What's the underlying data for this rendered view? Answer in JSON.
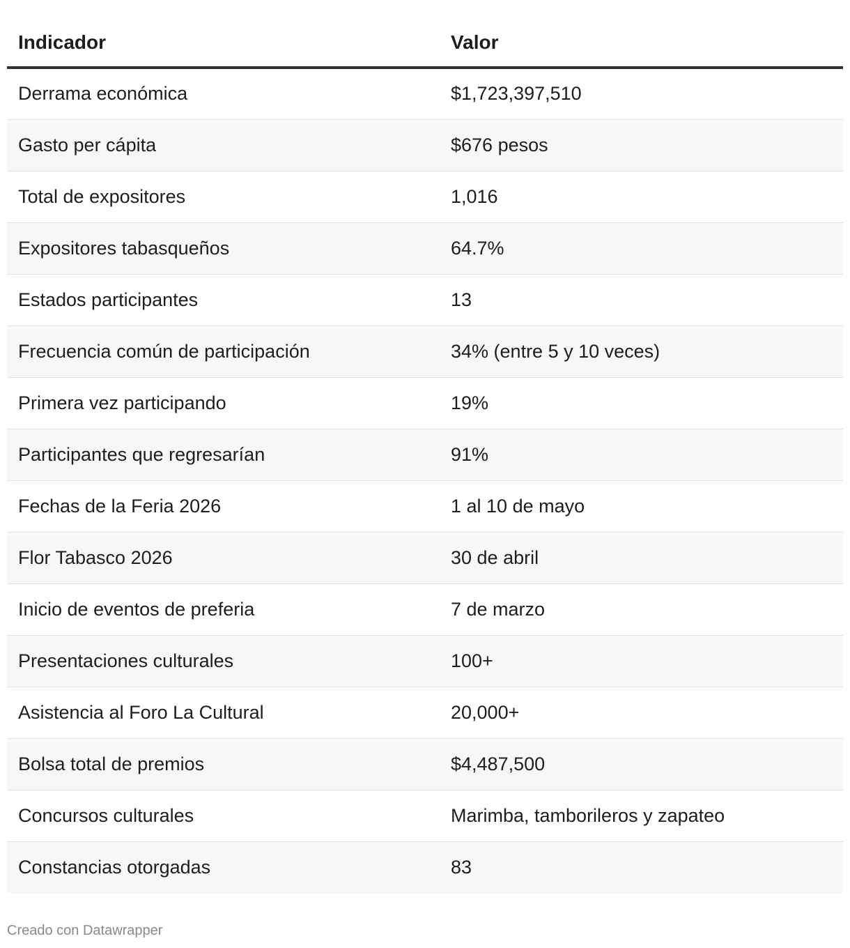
{
  "chart_data": {
    "type": "table",
    "columns": [
      "Indicador",
      "Valor"
    ],
    "rows": [
      [
        "Derrama económica",
        "$1,723,397,510"
      ],
      [
        "Gasto per cápita",
        "$676 pesos"
      ],
      [
        "Total de expositores",
        "1,016"
      ],
      [
        "Expositores tabasqueños",
        "64.7%"
      ],
      [
        "Estados participantes",
        "13"
      ],
      [
        "Frecuencia común de participación",
        "34% (entre 5 y 10 veces)"
      ],
      [
        "Primera vez participando",
        "19%"
      ],
      [
        "Participantes que regresarían",
        "91%"
      ],
      [
        "Fechas de la Feria 2026",
        "1 al 10 de mayo"
      ],
      [
        "Flor Tabasco 2026",
        "30 de abril"
      ],
      [
        "Inicio de eventos de preferia",
        "7 de marzo"
      ],
      [
        "Presentaciones culturales",
        "100+"
      ],
      [
        "Asistencia al Foro La Cultural",
        "20,000+"
      ],
      [
        "Bolsa total de premios",
        "$4,487,500"
      ],
      [
        "Concursos culturales",
        "Marimba, tamborileros y zapateo"
      ],
      [
        "Constancias otorgadas",
        "83"
      ]
    ],
    "striped_rows": true,
    "stripe_color": "#f7f7f7",
    "header_rule_color": "#333333"
  },
  "footer": {
    "credit": "Creado con Datawrapper"
  }
}
